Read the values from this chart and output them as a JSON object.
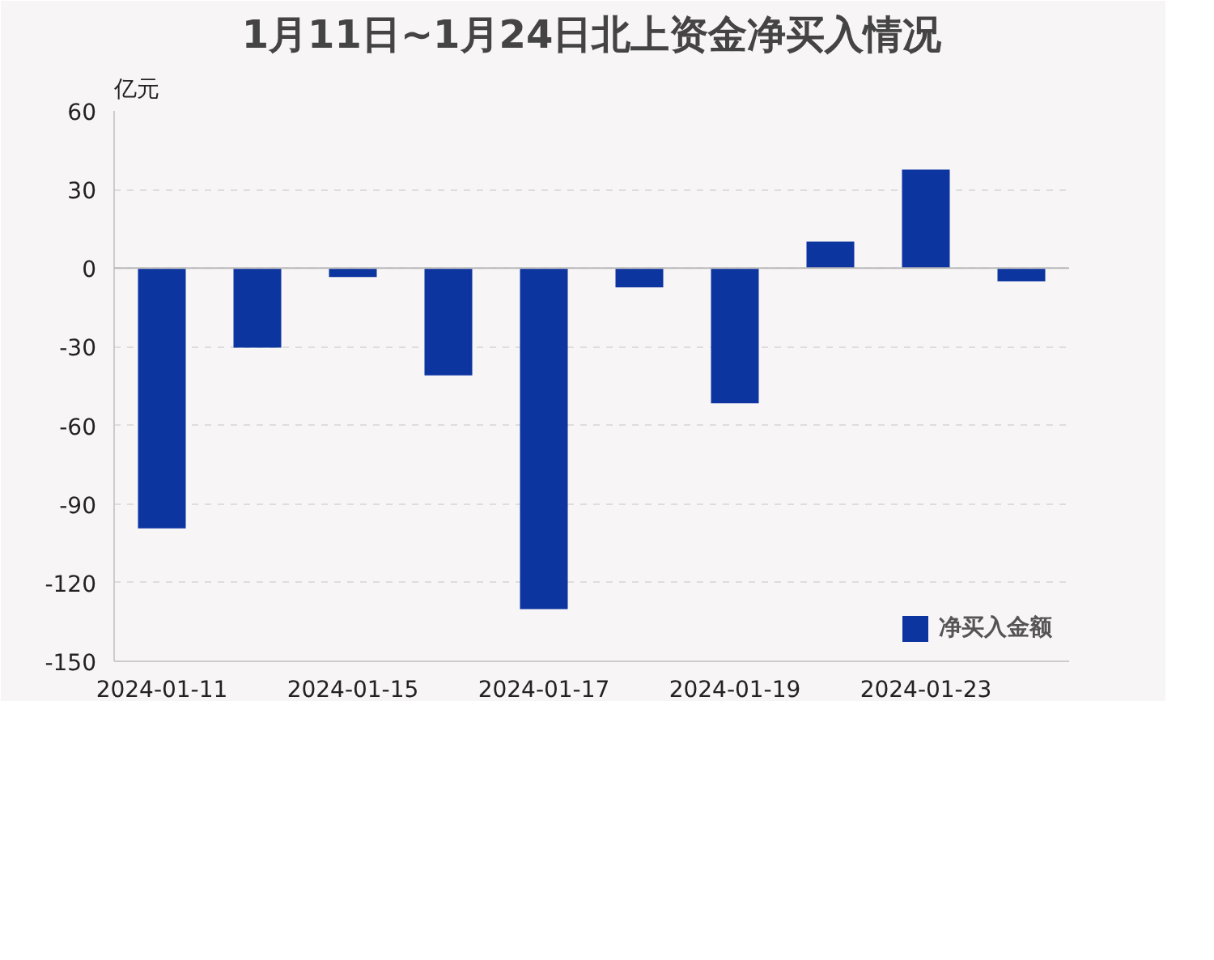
{
  "chart_data": {
    "type": "bar",
    "title": "1月11日~1月24日北上资金净买入情况",
    "ylabel": "亿元",
    "categories": [
      "2024-01-11",
      null,
      "2024-01-15",
      null,
      "2024-01-17",
      null,
      "2024-01-19",
      null,
      "2024-01-23",
      null
    ],
    "series": [
      {
        "name": "净买入金额",
        "color": "#0c35a0",
        "values": [
          -99.3,
          -30.3,
          -3.4,
          -40.9,
          -130.1,
          -7.3,
          -51.6,
          10.1,
          37.6,
          -5.0
        ]
      }
    ],
    "ylim": [
      -150,
      60
    ],
    "yticks": [
      -150,
      -120,
      -90,
      -60,
      -30,
      0,
      30,
      60
    ],
    "grid": "y",
    "legend": "bottom right"
  }
}
